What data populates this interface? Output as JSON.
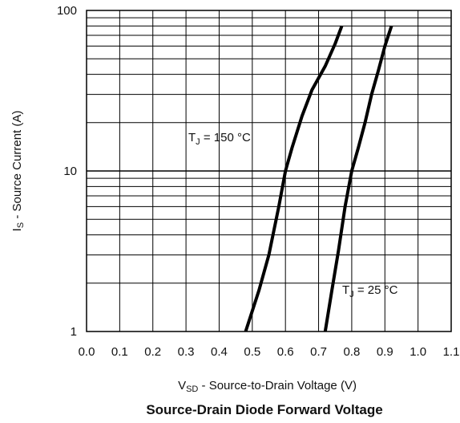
{
  "chart_data": {
    "type": "line",
    "title": "Source-Drain Diode Forward Voltage",
    "xlabel": {
      "main": "V",
      "sub": "SD",
      "rest": " - Source-to-Drain Voltage (V)"
    },
    "ylabel": {
      "main": "I",
      "sub": "S",
      "rest": " - Source Current (A)"
    },
    "x_ticks": [
      "0.0",
      "0.1",
      "0.2",
      "0.3",
      "0.4",
      "0.5",
      "0.6",
      "0.7",
      "0.8",
      "0.9",
      "1.0",
      "1.1"
    ],
    "y_ticks": [
      "1",
      "10",
      "100"
    ],
    "xlim": [
      0.0,
      1.1
    ],
    "ylim": [
      1,
      100
    ],
    "y_scale": "log",
    "grid": true,
    "series": [
      {
        "name_parts": {
          "main": "T",
          "sub": "J",
          "rest": " = 150 °C"
        },
        "x": [
          0.48,
          0.52,
          0.55,
          0.58,
          0.6,
          0.62,
          0.65,
          0.68,
          0.72,
          0.75,
          0.77
        ],
        "y": [
          1,
          1.8,
          3,
          6,
          10,
          14,
          22,
          32,
          45,
          62,
          80
        ]
      },
      {
        "name_parts": {
          "main": "T",
          "sub": "J",
          "rest": " = 25 °C"
        },
        "x": [
          0.72,
          0.74,
          0.76,
          0.78,
          0.8,
          0.82,
          0.84,
          0.86,
          0.88,
          0.9,
          0.92
        ],
        "y": [
          1,
          1.8,
          3.2,
          6,
          10,
          14,
          20,
          30,
          42,
          60,
          80
        ]
      }
    ]
  }
}
